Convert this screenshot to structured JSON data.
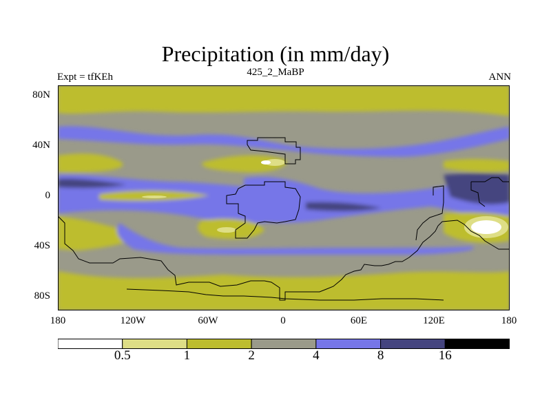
{
  "title": "Precipitation (in mm/day)",
  "subtitle_left": "Expt = tfKEh",
  "subtitle_center": "425_2_MaBP",
  "subtitle_right": "ANN",
  "lat_ticks": [
    "80N",
    "40N",
    "0",
    "40S",
    "80S"
  ],
  "lon_ticks": [
    "180",
    "120W",
    "60W",
    "0",
    "60E",
    "120E",
    "180"
  ],
  "colorbar": {
    "labels": [
      "0.5",
      "1",
      "2",
      "4",
      "8",
      "16"
    ],
    "colors": [
      "#ffffff",
      "#dede86",
      "#bdbd2f",
      "#9a9a8a",
      "#7676e8",
      "#45457f",
      "#000000"
    ]
  }
}
